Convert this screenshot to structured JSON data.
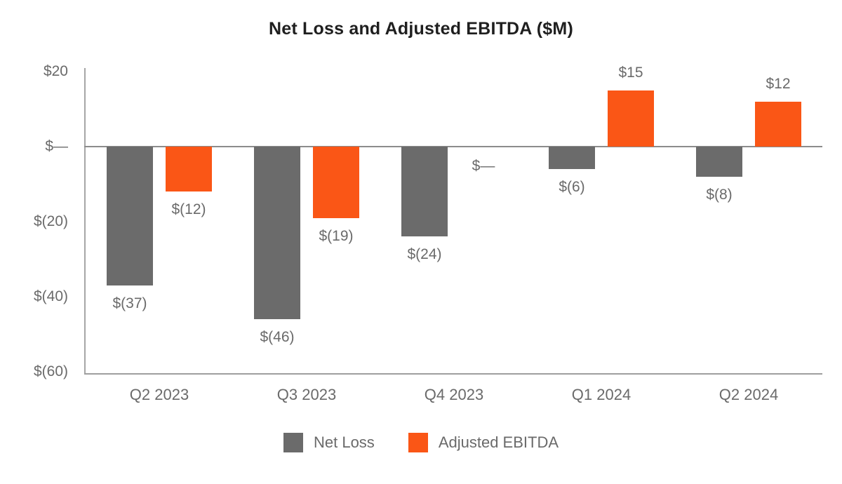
{
  "chart_data": {
    "type": "bar",
    "title": "Net Loss and Adjusted EBITDA ($M)",
    "units": "$M",
    "categories": [
      "Q2 2023",
      "Q3 2023",
      "Q4 2023",
      "Q1 2024",
      "Q2 2024"
    ],
    "series": [
      {
        "name": "Net Loss",
        "color": "#6B6B6B",
        "values": [
          -37,
          -46,
          -24,
          -6,
          -8
        ],
        "labels": [
          "$(37)",
          "$(46)",
          "$(24)",
          "$(6)",
          "$(8)"
        ]
      },
      {
        "name": "Adjusted EBITDA",
        "color": "#FA5616",
        "values": [
          -12,
          -19,
          0,
          15,
          12
        ],
        "labels": [
          "$(12)",
          "$(19)",
          "$—",
          "$15",
          "$12"
        ]
      }
    ],
    "y_axis": {
      "min": -60,
      "max": 20,
      "ticks": [
        {
          "value": 20,
          "label": "$20"
        },
        {
          "value": 0,
          "label": "$—"
        },
        {
          "value": -20,
          "label": "$(20)"
        },
        {
          "value": -40,
          "label": "$(40)"
        },
        {
          "value": -60,
          "label": "$(60)"
        }
      ]
    },
    "legend": {
      "position": "bottom",
      "entries": [
        "Net Loss",
        "Adjusted EBITDA"
      ]
    },
    "grid": false,
    "colors": {
      "title_text": "#1F1F1F",
      "label_text": "#6A6A6A",
      "axis_line": "#A6A6A6",
      "zero_line": "#8C8C8C",
      "background": "#FFFFFF"
    }
  }
}
